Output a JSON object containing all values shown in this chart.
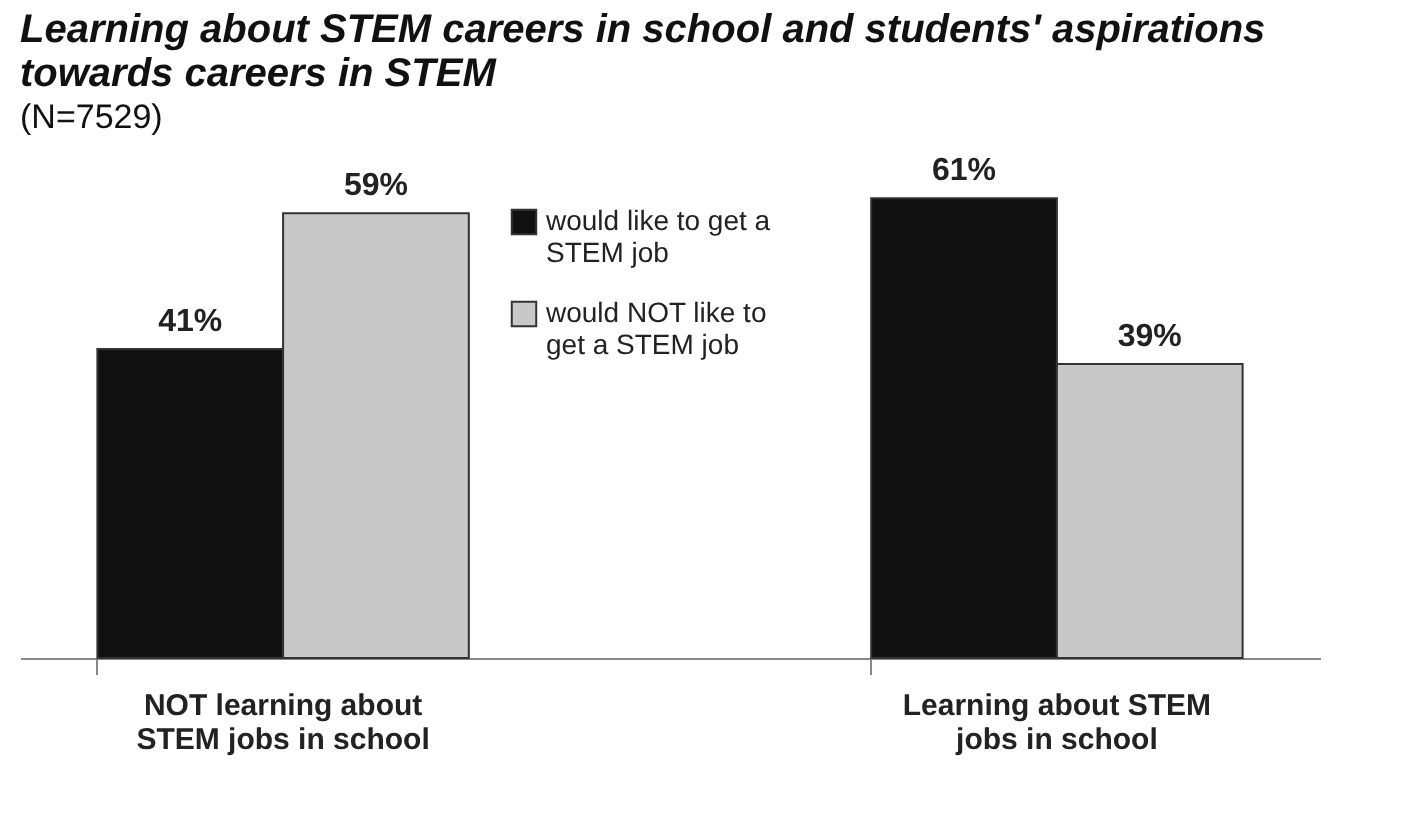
{
  "chart_data": {
    "type": "bar",
    "title": "Learning about STEM careers in school and students' aspirations towards careers in STEM",
    "subtitle": "(N=7529)",
    "categories": [
      "NOT learning about STEM jobs in school",
      "Learning about STEM jobs in school"
    ],
    "series": [
      {
        "name": "would like to get a STEM job",
        "color": "#111111",
        "values": [
          41,
          61
        ],
        "value_labels": [
          "41%",
          "61%"
        ]
      },
      {
        "name": "would NOT like to get a STEM job",
        "color": "#c8c8c8",
        "values": [
          59,
          39
        ],
        "value_labels": [
          "59%",
          "39%"
        ]
      }
    ],
    "legend": "top",
    "grid": false
  }
}
